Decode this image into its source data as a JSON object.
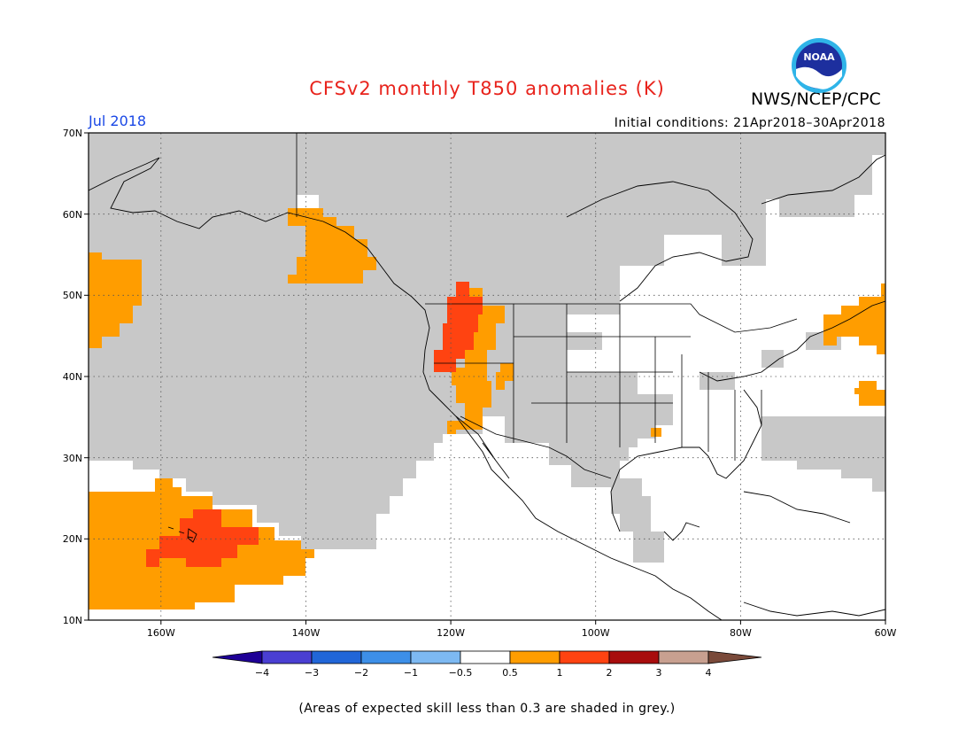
{
  "title": "CFSv2 monthly T850 anomalies (K)",
  "agency": "NWS/NCEP/CPC",
  "logo_text": "NOAA",
  "valid_month": "Jul 2018",
  "initial_conditions": "Initial conditions: 21Apr2018–30Apr2018",
  "footnote": "(Areas of expected skill less than 0.3 are shaded in grey.)",
  "lat_labels": [
    "70N",
    "60N",
    "50N",
    "40N",
    "30N",
    "20N",
    "10N"
  ],
  "lon_labels": [
    "160W",
    "140W",
    "120W",
    "100W",
    "80W",
    "60W"
  ],
  "colorbar": {
    "tick_labels": [
      "−4",
      "−3",
      "−2",
      "−1",
      "−0.5",
      "0.5",
      "1",
      "2",
      "3",
      "4"
    ],
    "colors": [
      "#1e0096",
      "#4a3fd2",
      "#2166d8",
      "#3d8fe8",
      "#7db9f2",
      "#ffffff",
      "#ff9d00",
      "#ff4311",
      "#a80d0d",
      "#c8a090",
      "#7a4a3a"
    ]
  },
  "map": {
    "extent": {
      "lon_min": -170,
      "lon_max": -60,
      "lat_min": 10,
      "lat_max": 70
    },
    "skill_mask_color": "#c8c8c8",
    "anomaly_colors": {
      "0.5-1": "#ff9d00",
      "1-2": "#ff4311"
    }
  }
}
